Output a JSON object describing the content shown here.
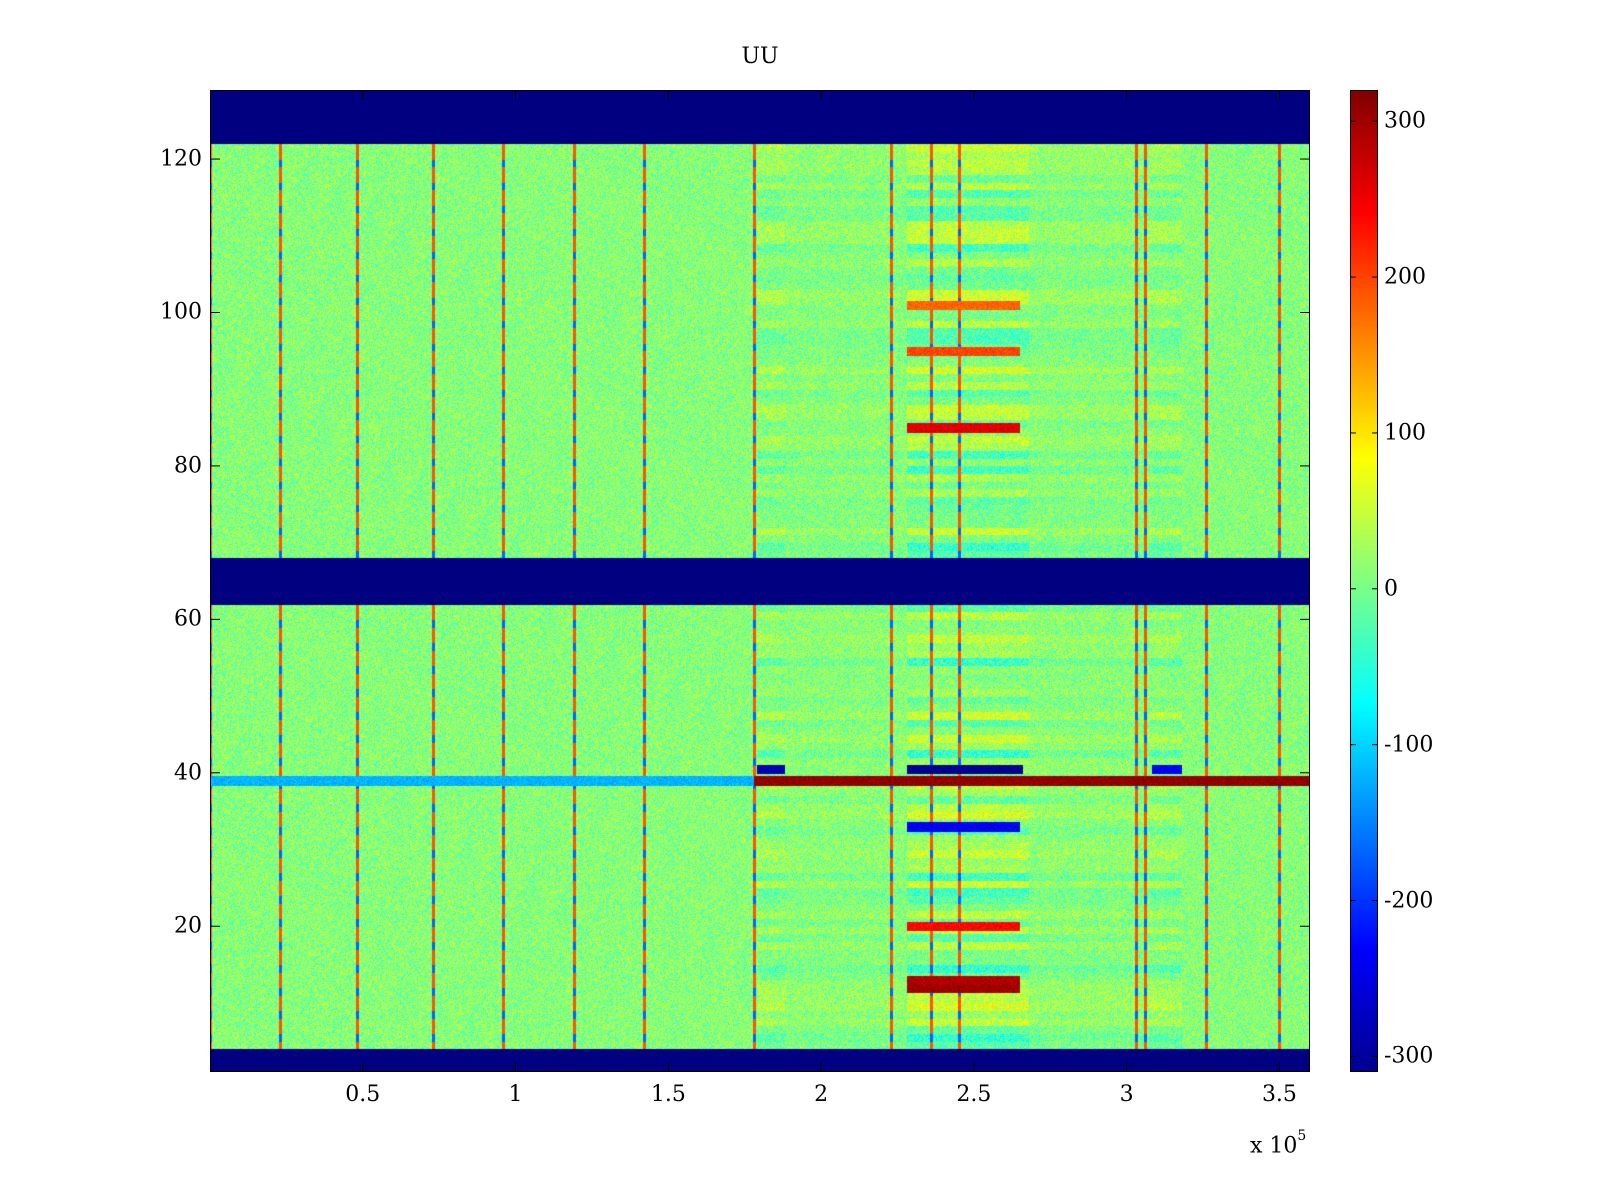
{
  "chart_data": {
    "type": "heatmap",
    "title": "UU",
    "xlabel": "",
    "ylabel": "",
    "x_range": [
      0,
      360000
    ],
    "y_range": [
      1,
      129
    ],
    "x_ticks": [
      50000,
      100000,
      150000,
      200000,
      250000,
      300000,
      350000
    ],
    "x_tick_labels": [
      "0.5",
      "1",
      "1.5",
      "2",
      "2.5",
      "3",
      "3.5"
    ],
    "x_multiplier_label": "x 10",
    "x_multiplier_exponent": "5",
    "y_ticks": [
      20,
      40,
      60,
      80,
      100,
      120
    ],
    "y_tick_labels": [
      "20",
      "40",
      "60",
      "80",
      "100",
      "120"
    ],
    "colormap": "jet",
    "clim": [
      -310,
      320
    ],
    "colorbar_ticks": [
      300,
      200,
      100,
      0,
      -100,
      -200,
      -300
    ],
    "colorbar_tick_labels": [
      "300",
      "200",
      "100",
      "0",
      "-100",
      "-200",
      "-300"
    ],
    "background_value_range": [
      -40,
      60
    ],
    "masked_row_bands": [
      {
        "from": 1,
        "to": 4,
        "value": -310
      },
      {
        "from": 62,
        "to": 68,
        "value": -310
      },
      {
        "from": 122,
        "to": 129,
        "value": -310
      }
    ],
    "vertical_spike_x": [
      0,
      23000,
      48000,
      73000,
      96000,
      119000,
      142000,
      178000,
      223000,
      236000,
      245000,
      303000,
      306000,
      326000,
      350000
    ],
    "active_column_ranges": [
      {
        "from": 179000,
        "to": 188000,
        "amplitude": 1.0
      },
      {
        "from": 188000,
        "to": 227000,
        "amplitude": 0.4
      },
      {
        "from": 228000,
        "to": 268000,
        "amplitude": 1.8
      },
      {
        "from": 268000,
        "to": 307000,
        "amplitude": 0.5
      },
      {
        "from": 307000,
        "to": 318000,
        "amplitude": 1.0
      }
    ],
    "strong_row_features": [
      {
        "row": 39,
        "x_from": 0,
        "x_to": 178000,
        "value": -120
      },
      {
        "row": 39,
        "x_from": 178000,
        "x_to": 360000,
        "value": 310
      },
      {
        "row": 40.5,
        "x_from": 228000,
        "x_to": 266000,
        "value": -300
      },
      {
        "row": 40.5,
        "x_from": 179000,
        "x_to": 188000,
        "value": -280
      },
      {
        "row": 40.5,
        "x_from": 308000,
        "x_to": 318000,
        "value": -240
      },
      {
        "row": 85,
        "x_from": 228000,
        "x_to": 265000,
        "value": 260
      },
      {
        "row": 12,
        "x_from": 228000,
        "x_to": 265000,
        "value": 300
      },
      {
        "row": 13,
        "x_from": 228000,
        "x_to": 265000,
        "value": 290
      },
      {
        "row": 20,
        "x_from": 228000,
        "x_to": 265000,
        "value": 240
      },
      {
        "row": 33,
        "x_from": 228000,
        "x_to": 265000,
        "value": -240
      },
      {
        "row": 95,
        "x_from": 228000,
        "x_to": 265000,
        "value": 200
      },
      {
        "row": 101,
        "x_from": 228000,
        "x_to": 265000,
        "value": 180
      }
    ]
  }
}
